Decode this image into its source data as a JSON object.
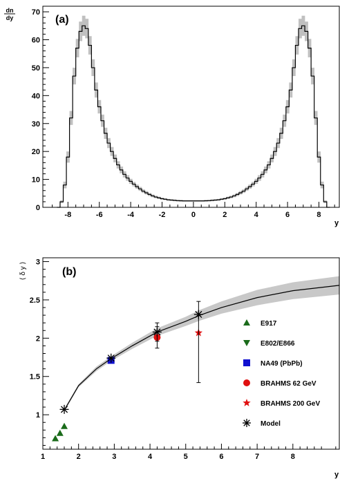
{
  "chart_data": [
    {
      "type": "line",
      "panel_label": "(a)",
      "ylabel_num": "dn",
      "ylabel_den": "dy",
      "xlabel": "y",
      "xlim": [
        -9.6,
        9.3
      ],
      "ylim": [
        0,
        72
      ],
      "xticks": [
        -8,
        -6,
        -4,
        -2,
        0,
        2,
        4,
        6,
        8
      ],
      "yticks": [
        0,
        10,
        20,
        30,
        40,
        50,
        60,
        70
      ],
      "grid": false,
      "series": [
        {
          "style": "histogram with gray error band",
          "x": [
            -8.6,
            -8.4,
            -8.2,
            -8.0,
            -7.8,
            -7.6,
            -7.4,
            -7.2,
            -7.0,
            -6.8,
            -6.6,
            -6.4,
            -6.2,
            -6.0,
            -5.8,
            -5.6,
            -5.4,
            -5.2,
            -5.0,
            -4.8,
            -4.6,
            -4.4,
            -4.2,
            -4.0,
            -3.8,
            -3.6,
            -3.4,
            -3.2,
            -3.0,
            -2.8,
            -2.6,
            -2.4,
            -2.2,
            -2.0,
            -1.8,
            -1.6,
            -1.4,
            -1.2,
            -1.0,
            -0.8,
            -0.6,
            -0.4,
            -0.2,
            0.0,
            0.2,
            0.4,
            0.6,
            0.8,
            1.0,
            1.2,
            1.4,
            1.6,
            1.8,
            2.0,
            2.2,
            2.4,
            2.6,
            2.8,
            3.0,
            3.2,
            3.4,
            3.6,
            3.8,
            4.0,
            4.2,
            4.4,
            4.6,
            4.8,
            5.0,
            5.2,
            5.4,
            5.6,
            5.8,
            6.0,
            6.2,
            6.4,
            6.6,
            6.8,
            7.0,
            7.2,
            7.4,
            7.6,
            7.8,
            8.0,
            8.2,
            8.4,
            8.6
          ],
          "y": [
            0,
            2,
            8,
            18,
            32,
            47,
            57,
            63,
            65,
            64,
            58,
            50,
            42,
            36,
            31,
            26.5,
            23,
            20,
            17.5,
            15.2,
            13.4,
            11.8,
            10.5,
            9.3,
            8.3,
            7.4,
            6.6,
            5.8,
            5.2,
            4.6,
            4.1,
            3.7,
            3.4,
            3.1,
            2.9,
            2.7,
            2.6,
            2.5,
            2.4,
            2.35,
            2.3,
            2.3,
            2.3,
            2.3,
            2.3,
            2.3,
            2.3,
            2.35,
            2.4,
            2.5,
            2.6,
            2.7,
            2.9,
            3.1,
            3.4,
            3.7,
            4.1,
            4.6,
            5.2,
            5.8,
            6.6,
            7.4,
            8.3,
            9.3,
            10.5,
            11.8,
            13.4,
            15.2,
            17.5,
            20,
            23,
            26.5,
            31,
            36,
            42,
            50,
            58,
            64,
            65,
            63,
            57,
            47,
            32,
            18,
            8,
            2,
            0
          ],
          "band_halfwidth": [
            0,
            0.5,
            1.2,
            2,
            2.5,
            3,
            3.3,
            3.5,
            3.6,
            3.5,
            3.3,
            3,
            2.7,
            2.4,
            2.2,
            2,
            1.8,
            1.6,
            1.4,
            1.3,
            1.2,
            1.1,
            1,
            0.9,
            0.8,
            0.75,
            0.7,
            0.65,
            0.6,
            0.55,
            0.5,
            0.45,
            0.4,
            0.35,
            0.3,
            0.3,
            0.3,
            0.3,
            0.3,
            0.3,
            0.3,
            0.3,
            0.3,
            0.3,
            0.3,
            0.3,
            0.3,
            0.3,
            0.3,
            0.3,
            0.3,
            0.3,
            0.3,
            0.35,
            0.4,
            0.45,
            0.5,
            0.55,
            0.6,
            0.65,
            0.7,
            0.75,
            0.8,
            0.9,
            1,
            1.1,
            1.2,
            1.3,
            1.4,
            1.6,
            1.8,
            2,
            2.2,
            2.4,
            2.7,
            3,
            3.3,
            3.5,
            3.6,
            3.5,
            3.3,
            3,
            2.5,
            2,
            1.2,
            0.5,
            0
          ]
        }
      ]
    },
    {
      "type": "scatter",
      "panel_label": "(b)",
      "ylabel": "⟨ δ y ⟩",
      "xlabel": "y",
      "xlim": [
        1,
        9.3
      ],
      "ylim": [
        0.55,
        3.05
      ],
      "xticks": [
        1,
        2,
        3,
        4,
        5,
        6,
        7,
        8
      ],
      "yticks": [
        1,
        1.5,
        2,
        2.5,
        3
      ],
      "ytick_labels": [
        "1",
        "1.5",
        "2",
        "2.5",
        "3"
      ],
      "grid": false,
      "legend_position": "right",
      "model_curve": {
        "x": [
          1.6,
          2.0,
          2.5,
          2.9,
          3.5,
          4.2,
          5.0,
          5.4,
          6.0,
          7.0,
          8.0,
          9.3
        ],
        "y": [
          1.06,
          1.38,
          1.6,
          1.73,
          1.9,
          2.08,
          2.22,
          2.3,
          2.4,
          2.53,
          2.62,
          2.69
        ],
        "band_halfwidth": [
          0.02,
          0.02,
          0.03,
          0.03,
          0.04,
          0.05,
          0.06,
          0.07,
          0.08,
          0.1,
          0.11,
          0.12
        ],
        "color": "#000000",
        "band_color": "#c8c8c8"
      },
      "series": [
        {
          "name": "E917",
          "marker": "triangle-up",
          "color": "#1a6b1a",
          "x": [
            1.35,
            1.48,
            1.6
          ],
          "y": [
            0.69,
            0.76,
            0.85
          ],
          "yerr": [
            0,
            0,
            0
          ]
        },
        {
          "name": "E802/E866",
          "marker": "triangle-down",
          "color": "#1a6b1a",
          "x": [],
          "y": [],
          "yerr": []
        },
        {
          "name": "NA49 (PbPb)",
          "marker": "square",
          "color": "#1010d0",
          "x": [
            2.91
          ],
          "y": [
            1.71
          ],
          "yerr": [
            0
          ]
        },
        {
          "name": "BRAHMS 62 GeV",
          "marker": "circle",
          "color": "#e01010",
          "x": [
            4.2
          ],
          "y": [
            2.01
          ],
          "yerr": [
            0.14
          ]
        },
        {
          "name": "BRAHMS 200 GeV",
          "marker": "star",
          "color": "#e01010",
          "x": [
            5.36
          ],
          "y": [
            2.07
          ],
          "yerr": [
            0
          ]
        },
        {
          "name": "Model",
          "marker": "asterisk",
          "color": "#000000",
          "x": [
            1.6,
            2.91,
            4.2,
            5.36
          ],
          "y": [
            1.07,
            1.74,
            2.08,
            2.31
          ],
          "yerr": [
            0,
            0,
            0.12,
            0.17
          ],
          "yerr_high_extra": [
            0,
            0,
            0,
            0
          ],
          "yerr_low_extra": [
            0,
            0,
            0,
            0.72
          ]
        }
      ]
    }
  ]
}
